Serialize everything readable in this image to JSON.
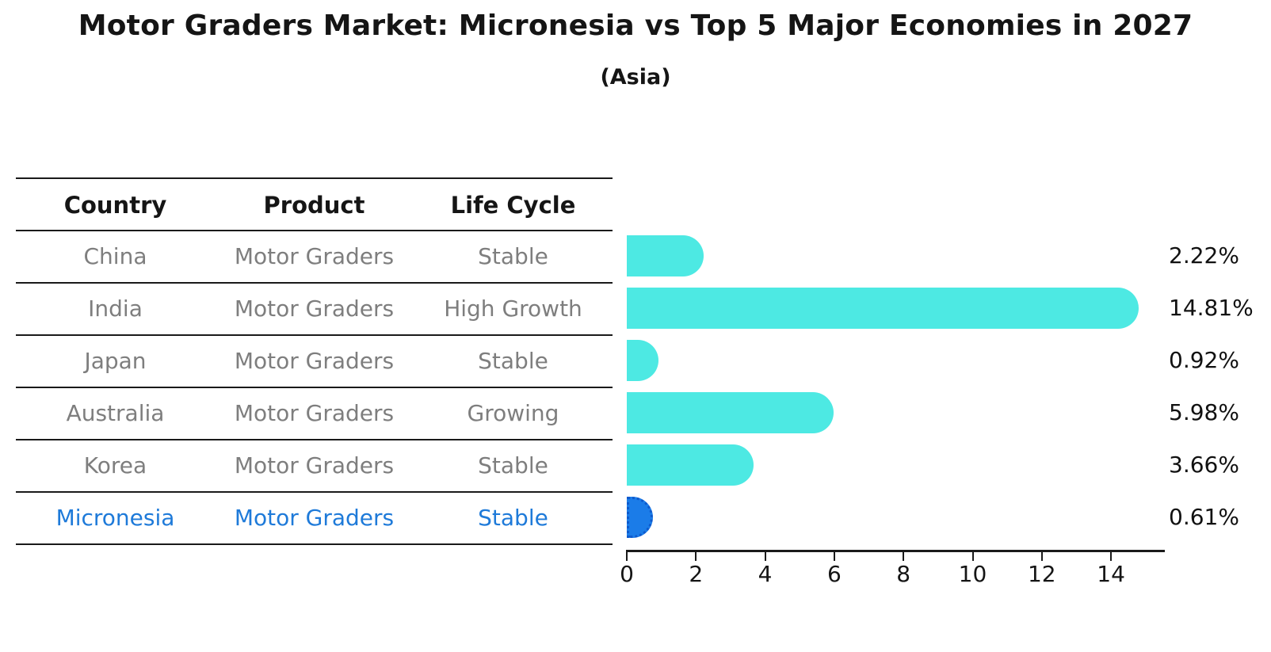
{
  "title": "Motor Graders Market: Micronesia vs Top 5 Major Economies in 2027",
  "subtitle": "(Asia)",
  "table": {
    "columns": [
      "Country",
      "Product",
      "Life Cycle"
    ],
    "rows": [
      {
        "country": "China",
        "product": "Motor Graders",
        "life_cycle": "Stable",
        "highlighted": false
      },
      {
        "country": "India",
        "product": "Motor Graders",
        "life_cycle": "High Growth",
        "highlighted": false
      },
      {
        "country": "Japan",
        "product": "Motor Graders",
        "life_cycle": "Stable",
        "highlighted": false
      },
      {
        "country": "Australia",
        "product": "Motor Graders",
        "life_cycle": "Growing",
        "highlighted": false
      },
      {
        "country": "Korea",
        "product": "Motor Graders",
        "life_cycle": "Stable",
        "highlighted": false
      },
      {
        "country": "Micronesia",
        "product": "Motor Graders",
        "life_cycle": "Stable",
        "highlighted": true
      }
    ]
  },
  "chart_data": {
    "type": "bar",
    "orientation": "horizontal",
    "title": "Motor Graders Market: Micronesia vs Top 5 Major Economies in 2027",
    "subtitle": "(Asia)",
    "categories": [
      "China",
      "India",
      "Japan",
      "Australia",
      "Korea",
      "Micronesia"
    ],
    "values": [
      2.22,
      14.81,
      0.92,
      5.98,
      3.66,
      0.61
    ],
    "value_labels": [
      "2.22%",
      "14.81%",
      "0.92%",
      "5.98%",
      "3.66%",
      "0.61%"
    ],
    "highlight_index": 5,
    "xlim": [
      0,
      15.55
    ],
    "xticks": [
      0,
      2,
      4,
      6,
      8,
      10,
      12,
      14
    ],
    "grid": false,
    "legend": false,
    "bar_color": "#4de9e3",
    "highlight_bar_color": "#1b7ce8",
    "highlight_text_color": "#1e7ad9",
    "row_text_color": "#7e7e7e",
    "axis_color": "#1a1a1a"
  }
}
